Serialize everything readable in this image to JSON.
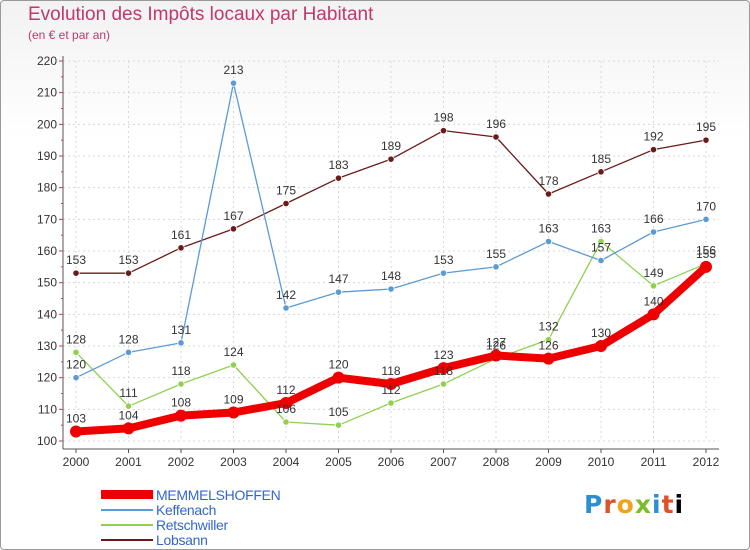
{
  "title": "Evolution des Impôts locaux par Habitant",
  "subtitle": "(en € et par an)",
  "logo_text": "Proxiti",
  "chart_data": {
    "type": "line",
    "x": [
      "2000",
      "2001",
      "2002",
      "2003",
      "2004",
      "2005",
      "2006",
      "2007",
      "2008",
      "2009",
      "2010",
      "2011",
      "2012"
    ],
    "ylim": [
      100,
      220
    ],
    "yticks": [
      100,
      110,
      120,
      130,
      140,
      150,
      160,
      170,
      180,
      190,
      200,
      210,
      220
    ],
    "grid": true,
    "legend_position": "bottom-left",
    "series": [
      {
        "name": "Lobsann",
        "color": "#6b1a1a",
        "values": [
          153,
          153,
          161,
          167,
          175,
          183,
          189,
          198,
          196,
          178,
          185,
          192,
          195
        ]
      },
      {
        "name": "Retschwiller",
        "color": "#8fd14f",
        "values": [
          128,
          111,
          118,
          124,
          106,
          105,
          112,
          118,
          126,
          132,
          163,
          149,
          156
        ]
      },
      {
        "name": "Keffenach",
        "color": "#5b9bd5",
        "values": [
          120,
          128,
          131,
          213,
          142,
          147,
          148,
          153,
          155,
          163,
          157,
          166,
          170
        ]
      },
      {
        "name": "MEMMELSHOFFEN",
        "color": "#ee0000",
        "values": [
          103,
          104,
          108,
          109,
          112,
          120,
          118,
          123,
          127,
          126,
          130,
          140,
          155
        ]
      }
    ]
  },
  "legend": [
    {
      "label": "MEMMELSHOFFEN",
      "color": "#ee0000"
    },
    {
      "label": "Keffenach",
      "color": "#5b9bd5"
    },
    {
      "label": "Retschwiller",
      "color": "#8fd14f"
    },
    {
      "label": "Lobsann",
      "color": "#6b1a1a"
    }
  ]
}
